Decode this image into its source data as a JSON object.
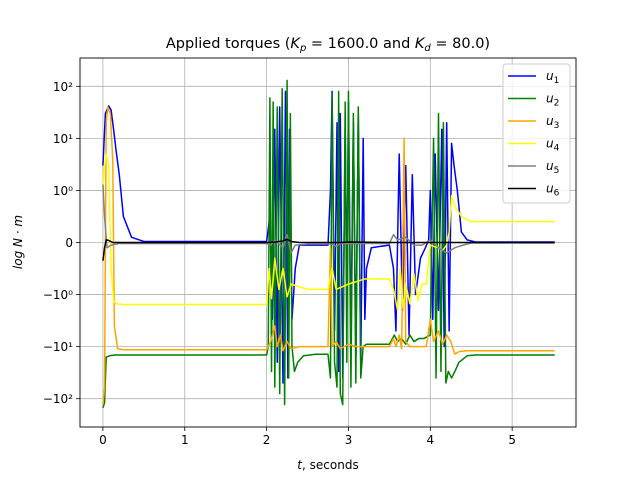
{
  "chart_data": {
    "type": "line",
    "title_parts": {
      "prefix": "Applied torques (",
      "kp_symbol": "K",
      "kp_sub": "p",
      "kp_value": " = 1600.0 and ",
      "kd_symbol": "K",
      "kd_sub": "d",
      "kd_value": " = 80.0)"
    },
    "xlabel_parts": {
      "var": "t",
      "rest": ", seconds"
    },
    "ylabel": "log N · m",
    "yscale": "symlog",
    "xlim": [
      -0.28,
      5.78
    ],
    "ylim": [
      -350,
      350
    ],
    "x_ticks": [
      0,
      1,
      2,
      3,
      4,
      5
    ],
    "x_tick_labels": [
      "0",
      "1",
      "2",
      "3",
      "4",
      "5"
    ],
    "y_ticks": [
      100,
      10,
      1,
      0,
      -1,
      -10,
      -100
    ],
    "y_tick_labels": [
      "10²",
      "10¹",
      "10⁰",
      "0",
      "−10⁰",
      "−10¹",
      "−10²"
    ],
    "grid": true,
    "legend_position": "upper-right",
    "series": [
      {
        "name": "u1",
        "label_base": "u",
        "label_sub": "1",
        "color": "#0000ff",
        "points": [
          [
            0,
            3
          ],
          [
            0.03,
            30
          ],
          [
            0.07,
            42
          ],
          [
            0.1,
            35
          ],
          [
            0.13,
            15
          ],
          [
            0.16,
            6
          ],
          [
            0.2,
            2
          ],
          [
            0.25,
            0.5
          ],
          [
            0.35,
            0.1
          ],
          [
            0.5,
            0.02
          ],
          [
            2.0,
            0.02
          ],
          [
            2.04,
            0.5
          ],
          [
            2.07,
            -3
          ],
          [
            2.1,
            15
          ],
          [
            2.13,
            -20
          ],
          [
            2.16,
            40
          ],
          [
            2.2,
            -50
          ],
          [
            2.23,
            80
          ],
          [
            2.26,
            -40
          ],
          [
            2.28,
            15
          ],
          [
            2.31,
            -3
          ],
          [
            2.35,
            -0.5
          ],
          [
            2.4,
            -0.05
          ],
          [
            2.75,
            -0.05
          ],
          [
            2.78,
            1
          ],
          [
            2.8,
            80
          ],
          [
            2.83,
            -5
          ],
          [
            2.86,
            20
          ],
          [
            2.88,
            -30
          ],
          [
            2.9,
            30
          ],
          [
            2.93,
            -40
          ],
          [
            2.96,
            15
          ],
          [
            2.98,
            -1
          ],
          [
            3.0,
            50
          ],
          [
            3.03,
            -8
          ],
          [
            3.06,
            20
          ],
          [
            3.09,
            -15
          ],
          [
            3.12,
            30
          ],
          [
            3.15,
            -20
          ],
          [
            3.18,
            10
          ],
          [
            3.2,
            -3
          ],
          [
            3.22,
            -0.5
          ],
          [
            3.28,
            -0.1
          ],
          [
            3.5,
            -0.05
          ],
          [
            3.55,
            -0.5
          ],
          [
            3.58,
            -5
          ],
          [
            3.62,
            5
          ],
          [
            3.66,
            -2
          ],
          [
            3.7,
            3
          ],
          [
            3.74,
            -6
          ],
          [
            3.78,
            2
          ],
          [
            3.82,
            -1
          ],
          [
            3.88,
            -0.3
          ],
          [
            3.94,
            -0.1
          ],
          [
            3.98,
            0.05
          ],
          [
            4.0,
            1
          ],
          [
            4.03,
            -3
          ],
          [
            4.06,
            5
          ],
          [
            4.1,
            -2
          ],
          [
            4.14,
            15
          ],
          [
            4.17,
            -10
          ],
          [
            4.2,
            20
          ],
          [
            4.23,
            -5
          ],
          [
            4.26,
            8
          ],
          [
            4.29,
            3
          ],
          [
            4.33,
            1
          ],
          [
            4.38,
            0.2
          ],
          [
            4.45,
            0.05
          ],
          [
            4.55,
            0.01
          ],
          [
            5.52,
            0.01
          ]
        ]
      },
      {
        "name": "u2",
        "label_base": "u",
        "label_sub": "2",
        "color": "#008000",
        "points": [
          [
            0,
            -150
          ],
          [
            0.02,
            -120
          ],
          [
            0.04,
            -16
          ],
          [
            0.08,
            -15
          ],
          [
            0.15,
            -14.5
          ],
          [
            2.0,
            -14.5
          ],
          [
            2.02,
            -10
          ],
          [
            2.04,
            60
          ],
          [
            2.06,
            -30
          ],
          [
            2.08,
            50
          ],
          [
            2.1,
            -60
          ],
          [
            2.13,
            40
          ],
          [
            2.16,
            -80
          ],
          [
            2.19,
            90
          ],
          [
            2.22,
            -130
          ],
          [
            2.25,
            130
          ],
          [
            2.27,
            -40
          ],
          [
            2.29,
            30
          ],
          [
            2.31,
            -10
          ],
          [
            2.34,
            -30
          ],
          [
            2.38,
            -20
          ],
          [
            2.45,
            -15
          ],
          [
            2.6,
            -14
          ],
          [
            2.75,
            -14
          ],
          [
            2.78,
            -40
          ],
          [
            2.8,
            70
          ],
          [
            2.83,
            -20
          ],
          [
            2.86,
            -60
          ],
          [
            2.88,
            80
          ],
          [
            2.9,
            -80
          ],
          [
            2.93,
            -130
          ],
          [
            2.96,
            50
          ],
          [
            2.98,
            -20
          ],
          [
            3.0,
            80
          ],
          [
            3.03,
            -60
          ],
          [
            3.06,
            30
          ],
          [
            3.09,
            -50
          ],
          [
            3.12,
            40
          ],
          [
            3.15,
            -40
          ],
          [
            3.18,
            -10
          ],
          [
            3.22,
            -9
          ],
          [
            3.3,
            -9
          ],
          [
            3.5,
            -9
          ],
          [
            3.56,
            -6
          ],
          [
            3.6,
            -8
          ],
          [
            3.65,
            -7
          ],
          [
            3.7,
            -9
          ],
          [
            3.75,
            -6
          ],
          [
            3.8,
            -8
          ],
          [
            3.86,
            -7
          ],
          [
            3.92,
            -7
          ],
          [
            4.0,
            -6
          ],
          [
            4.04,
            10
          ],
          [
            4.07,
            -40
          ],
          [
            4.1,
            30
          ],
          [
            4.13,
            -30
          ],
          [
            4.16,
            20
          ],
          [
            4.19,
            -50
          ],
          [
            4.22,
            -30
          ],
          [
            4.26,
            -40
          ],
          [
            4.3,
            -30
          ],
          [
            4.35,
            -20
          ],
          [
            4.45,
            -15
          ],
          [
            4.55,
            -14.5
          ],
          [
            5.52,
            -14.5
          ]
        ]
      },
      {
        "name": "u3",
        "label_base": "u",
        "label_sub": "3",
        "color": "#ffa500",
        "points": [
          [
            0,
            -130
          ],
          [
            0.02,
            -60
          ],
          [
            0.04,
            20
          ],
          [
            0.06,
            40
          ],
          [
            0.09,
            30
          ],
          [
            0.12,
            4
          ],
          [
            0.14,
            -4
          ],
          [
            0.18,
            -11
          ],
          [
            0.25,
            -11.5
          ],
          [
            0.4,
            -11.5
          ],
          [
            2.0,
            -11.5
          ],
          [
            2.05,
            -8
          ],
          [
            2.1,
            -4
          ],
          [
            2.13,
            -10
          ],
          [
            2.17,
            -6
          ],
          [
            2.2,
            -12
          ],
          [
            2.25,
            -8
          ],
          [
            2.3,
            -11
          ],
          [
            2.4,
            -10
          ],
          [
            2.6,
            -10
          ],
          [
            2.75,
            -10
          ],
          [
            2.78,
            -0.1
          ],
          [
            2.8,
            -10
          ],
          [
            2.85,
            -8
          ],
          [
            2.9,
            -11
          ],
          [
            3.0,
            -9
          ],
          [
            3.1,
            -10
          ],
          [
            3.3,
            -10
          ],
          [
            3.5,
            -10
          ],
          [
            3.55,
            -7
          ],
          [
            3.58,
            -10
          ],
          [
            3.62,
            -6
          ],
          [
            3.65,
            -11
          ],
          [
            3.68,
            10
          ],
          [
            3.7,
            -8
          ],
          [
            3.75,
            -10
          ],
          [
            3.85,
            -10
          ],
          [
            3.95,
            -10
          ],
          [
            4.0,
            -3
          ],
          [
            4.04,
            -8
          ],
          [
            4.1,
            -5
          ],
          [
            4.15,
            -9
          ],
          [
            4.2,
            -6
          ],
          [
            4.25,
            -8
          ],
          [
            4.3,
            -14
          ],
          [
            4.35,
            -12.5
          ],
          [
            4.45,
            -12
          ],
          [
            5.52,
            -12
          ]
        ]
      },
      {
        "name": "u4",
        "label_base": "u",
        "label_sub": "4",
        "color": "#ffff00",
        "points": [
          [
            0,
            1
          ],
          [
            0.02,
            3
          ],
          [
            0.04,
            5
          ],
          [
            0.07,
            3
          ],
          [
            0.1,
            -0.5
          ],
          [
            0.13,
            -1.3
          ],
          [
            0.16,
            -1.5
          ],
          [
            0.25,
            -1.55
          ],
          [
            2.0,
            -1.55
          ],
          [
            2.03,
            -0.5
          ],
          [
            2.06,
            -1.2
          ],
          [
            2.1,
            -0.3
          ],
          [
            2.15,
            -0.9
          ],
          [
            2.2,
            -0.5
          ],
          [
            2.25,
            -1.1
          ],
          [
            2.3,
            -0.8
          ],
          [
            2.5,
            -0.9
          ],
          [
            2.75,
            -0.9
          ],
          [
            2.8,
            -0.5
          ],
          [
            2.85,
            -0.9
          ],
          [
            3.0,
            -0.8
          ],
          [
            3.2,
            -0.7
          ],
          [
            3.5,
            -0.7
          ],
          [
            3.55,
            -0.9
          ],
          [
            3.6,
            -2
          ],
          [
            3.63,
            -0.5
          ],
          [
            3.67,
            -1.8
          ],
          [
            3.7,
            -0.8
          ],
          [
            3.75,
            -1.5
          ],
          [
            3.8,
            -0.6
          ],
          [
            3.85,
            -1.3
          ],
          [
            3.9,
            -0.8
          ],
          [
            3.95,
            -0.8
          ],
          [
            4.0,
            -0.05
          ],
          [
            4.05,
            -0.08
          ],
          [
            4.1,
            -0.1
          ],
          [
            4.15,
            -0.15
          ],
          [
            4.2,
            -0.05
          ],
          [
            4.23,
            0.2
          ],
          [
            4.26,
            0.9
          ],
          [
            4.3,
            0.7
          ],
          [
            4.38,
            0.5
          ],
          [
            4.5,
            0.4
          ],
          [
            5.52,
            0.4
          ]
        ]
      },
      {
        "name": "u5",
        "label_base": "u",
        "label_sub": "5",
        "color": "#808080",
        "points": [
          [
            0,
            1.3
          ],
          [
            0.02,
            0.5
          ],
          [
            0.05,
            -0.1
          ],
          [
            0.1,
            -0.05
          ],
          [
            0.2,
            -0.02
          ],
          [
            2.0,
            -0.02
          ],
          [
            2.05,
            -0.05
          ],
          [
            2.1,
            0.05
          ],
          [
            2.2,
            -0.1
          ],
          [
            2.25,
            0.15
          ],
          [
            2.3,
            -0.2
          ],
          [
            2.35,
            -0.05
          ],
          [
            2.5,
            -0.03
          ],
          [
            2.8,
            -0.03
          ],
          [
            2.85,
            -0.08
          ],
          [
            2.9,
            -0.02
          ],
          [
            3.5,
            -0.02
          ],
          [
            3.55,
            0.15
          ],
          [
            3.6,
            0.05
          ],
          [
            3.7,
            0.1
          ],
          [
            3.8,
            -0.05
          ],
          [
            3.9,
            -0.05
          ],
          [
            4.0,
            0.05
          ],
          [
            4.1,
            -0.1
          ],
          [
            4.2,
            -0.2
          ],
          [
            4.3,
            -0.1
          ],
          [
            4.4,
            -0.05
          ],
          [
            4.5,
            -0.01
          ],
          [
            5.52,
            -0.01
          ]
        ]
      },
      {
        "name": "u6",
        "label_base": "u",
        "label_sub": "6",
        "color": "#000000",
        "points": [
          [
            0,
            -0.35
          ],
          [
            0.02,
            -0.1
          ],
          [
            0.04,
            0.05
          ],
          [
            0.07,
            0.04
          ],
          [
            0.12,
            0
          ],
          [
            2.0,
            0
          ],
          [
            2.1,
            0.01
          ],
          [
            2.2,
            0.03
          ],
          [
            2.25,
            0.06
          ],
          [
            2.3,
            0.02
          ],
          [
            2.4,
            0
          ],
          [
            2.9,
            0
          ],
          [
            3.0,
            0.01
          ],
          [
            3.5,
            0
          ],
          [
            5.52,
            0
          ]
        ]
      }
    ]
  }
}
